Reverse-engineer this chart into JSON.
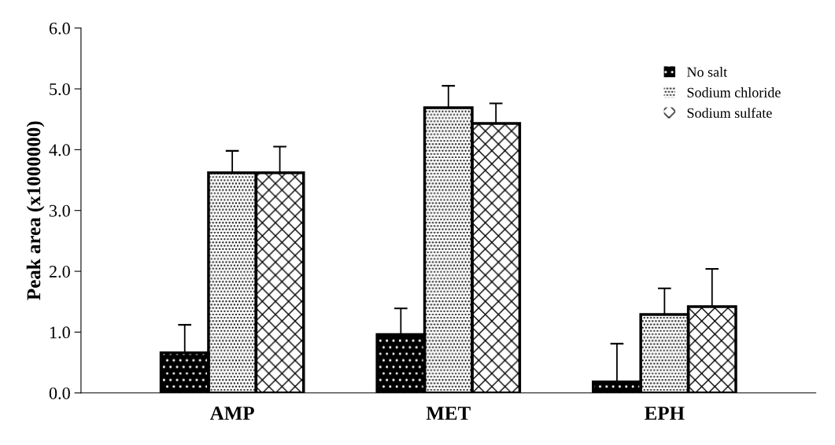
{
  "chart_data": {
    "type": "bar",
    "ylabel": "Peak area (x1000000)",
    "categories": [
      "AMP",
      "MET",
      "EPH"
    ],
    "series": [
      {
        "name": "No salt",
        "color": "#000000",
        "values": [
          0.66,
          0.96,
          0.18
        ],
        "errors": [
          0.46,
          0.43,
          0.63
        ]
      },
      {
        "name": "Sodium chloride",
        "color": "#ffffff",
        "values": [
          3.62,
          4.69,
          1.29
        ],
        "errors": [
          0.36,
          0.36,
          0.43
        ]
      },
      {
        "name": "Sodium sulfate",
        "color": "#ffffff",
        "values": [
          3.62,
          4.43,
          1.42
        ],
        "errors": [
          0.43,
          0.33,
          0.62
        ]
      }
    ],
    "ylim": [
      0,
      6
    ],
    "yticks": [
      {
        "value": 0,
        "label": "0.0"
      },
      {
        "value": 1,
        "label": "1.0"
      },
      {
        "value": 2,
        "label": "2.0"
      },
      {
        "value": 3,
        "label": "3.0"
      },
      {
        "value": 4,
        "label": "4.0"
      },
      {
        "value": 5,
        "label": "5.0"
      },
      {
        "value": 6,
        "label": "6.0"
      }
    ],
    "grid": false,
    "legend": "top right"
  }
}
